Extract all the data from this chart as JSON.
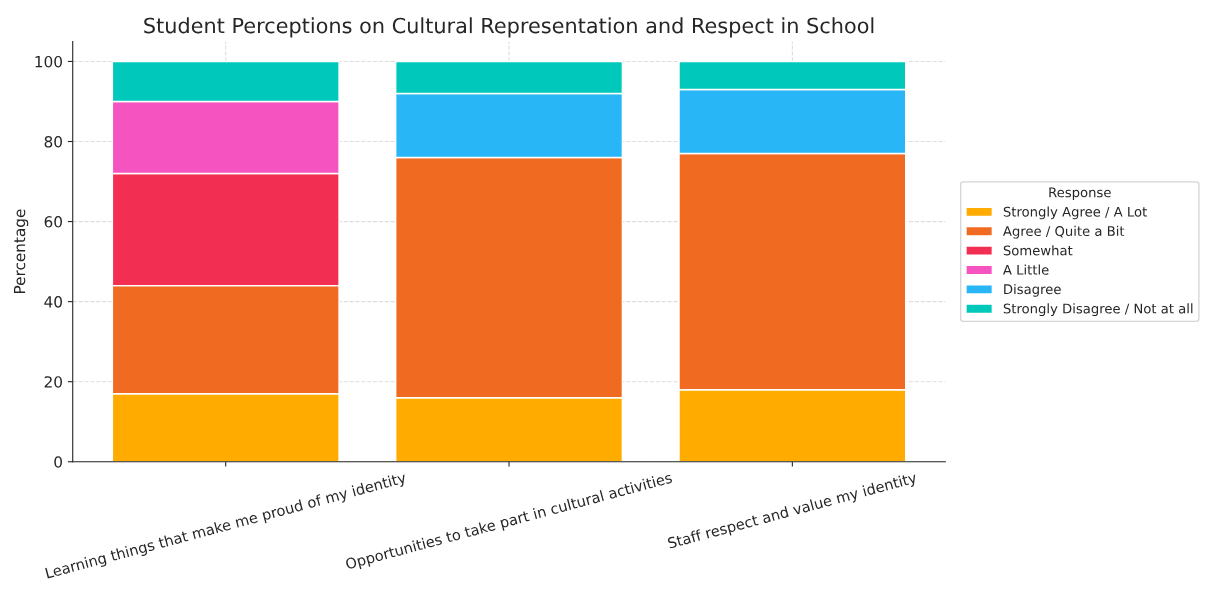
{
  "chart_data": {
    "type": "bar",
    "title": "Student Perceptions on Cultural Representation and Respect in School",
    "ylabel": "Percentage",
    "legend_title": "Response",
    "categories": [
      "Learning things that make me proud of my identity",
      "Opportunities to take part in cultural activities",
      "Staff respect and value my identity"
    ],
    "stacked": true,
    "series": [
      {
        "name": "Strongly Agree / A Lot",
        "color": "#ffab00",
        "values": [
          17,
          16,
          18
        ]
      },
      {
        "name": "Agree / Quite a Bit",
        "color": "#f06a22",
        "values": [
          27,
          60,
          59
        ]
      },
      {
        "name": "Somewhat",
        "color": "#f22f52",
        "values": [
          28,
          null,
          null
        ]
      },
      {
        "name": "A Little",
        "color": "#f553c0",
        "values": [
          18,
          null,
          null
        ]
      },
      {
        "name": "Disagree",
        "color": "#29b6f6",
        "values": [
          null,
          16,
          16
        ]
      },
      {
        "name": "Strongly Disagree / Not at all",
        "color": "#00c9bc",
        "values": [
          10,
          8,
          7
        ]
      }
    ],
    "ylim": [
      0,
      105
    ],
    "yticks": [
      0,
      20,
      40,
      60,
      80,
      100
    ],
    "grid": true,
    "legend": "right"
  }
}
